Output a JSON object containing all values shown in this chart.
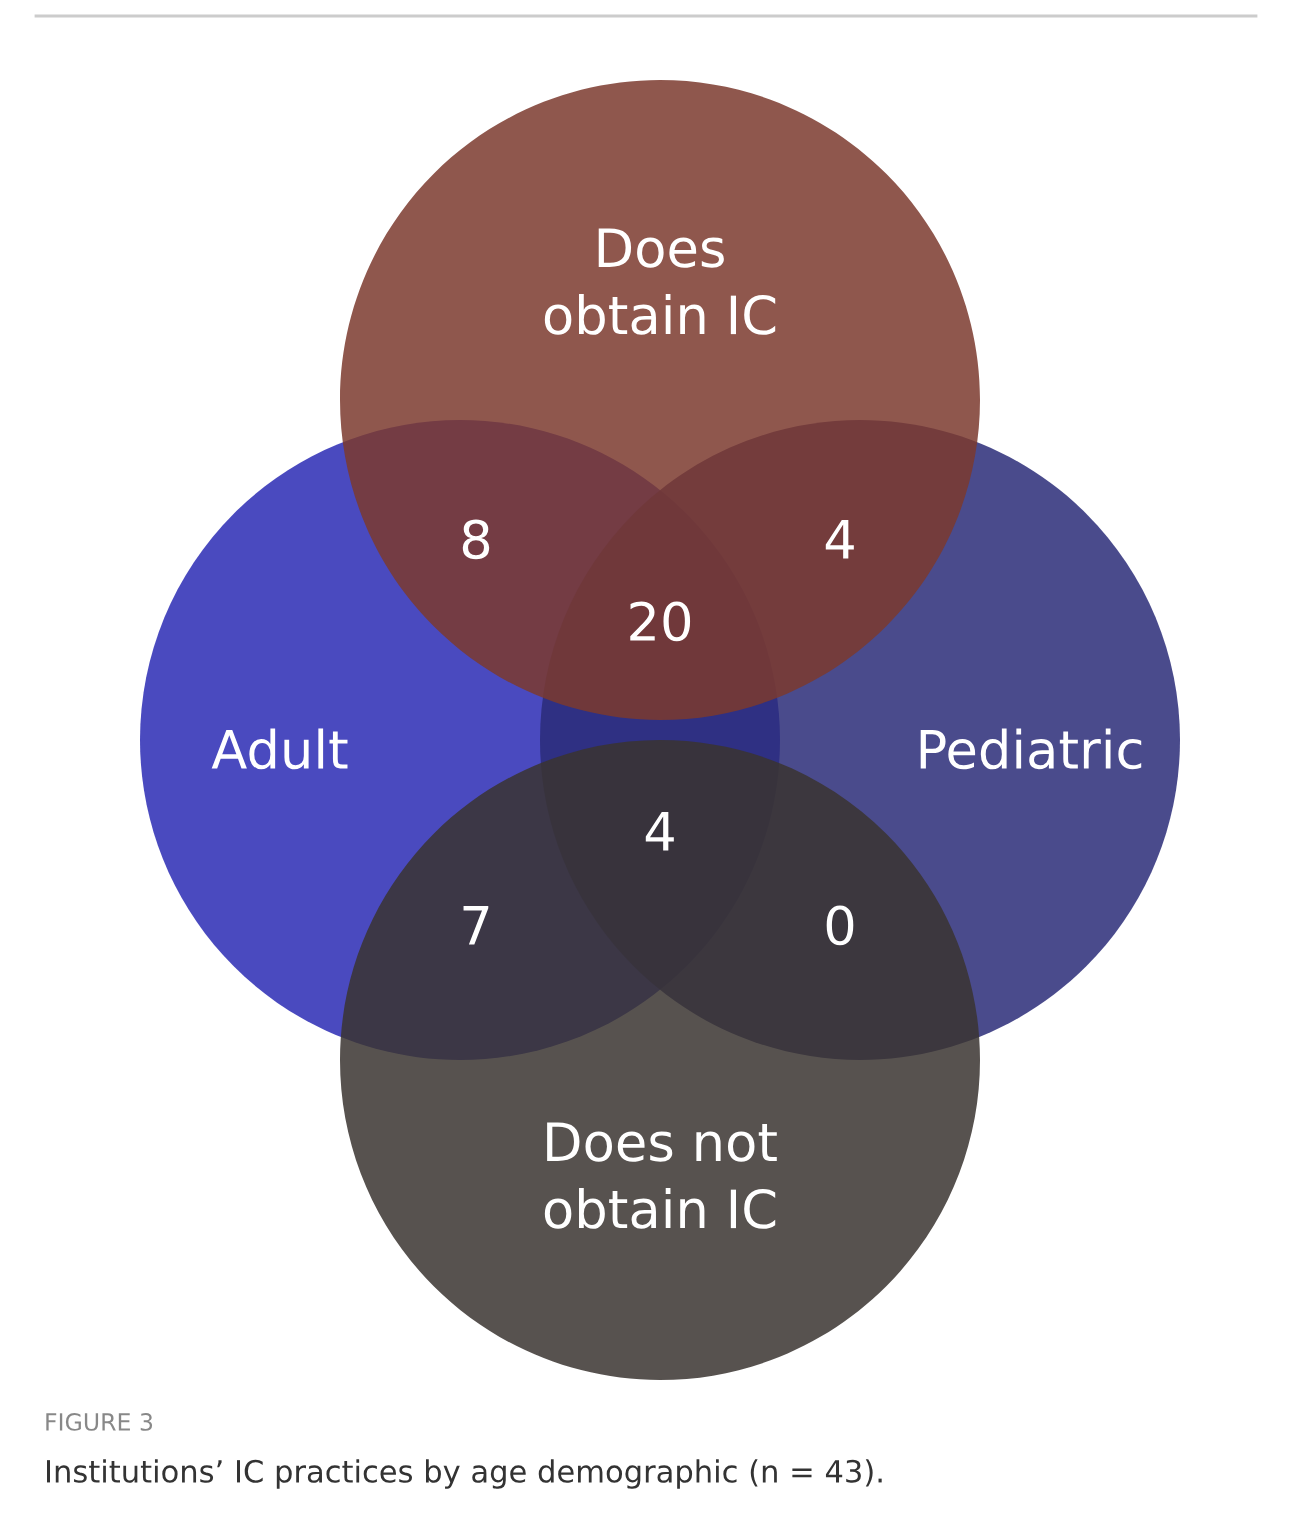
{
  "chart_data": {
    "type": "other",
    "categories": [
      null,
      null,
      null,
      null,
      null,
      null
    ],
    "values": [
      8,
      4,
      20,
      4,
      7,
      0
    ],
    "data_labels": true,
    "annotations": [
      "Does\nobtain IC",
      "Adult",
      "Pediatric",
      "Does not\nobtain IC",
      "FIGURE 3",
      "Institutions’ IC practices by age demographic (n = 43)."
    ]
  }
}
